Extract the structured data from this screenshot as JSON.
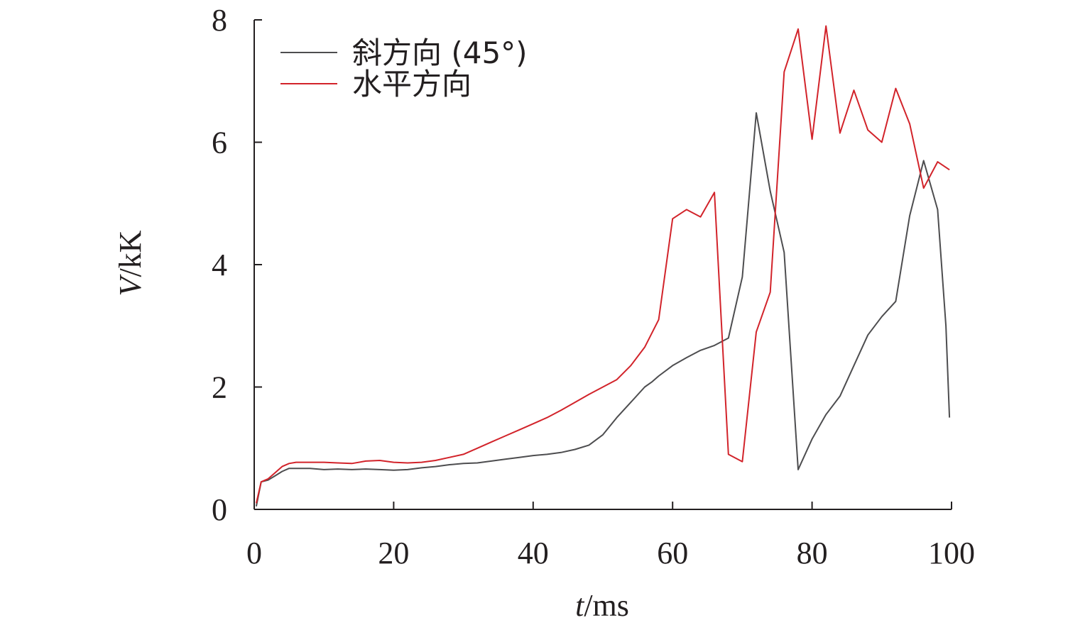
{
  "chart_data": {
    "type": "line",
    "xlabel": {
      "var": "t",
      "unit": "/ms"
    },
    "ylabel": {
      "var": "V",
      "unit": "/kK"
    },
    "xlim": [
      0,
      100
    ],
    "ylim": [
      0,
      8
    ],
    "xticks": [
      "0",
      "20",
      "40",
      "60",
      "80",
      "100"
    ],
    "yticks": [
      "0",
      "2",
      "4",
      "6",
      "8"
    ],
    "grid": false,
    "legend_position": "top-left",
    "series": [
      {
        "name": "斜方向 (45°)",
        "color": "#4d4d4f",
        "points": [
          [
            0.3,
            0.05
          ],
          [
            1,
            0.45
          ],
          [
            2,
            0.48
          ],
          [
            3,
            0.55
          ],
          [
            4,
            0.62
          ],
          [
            5,
            0.67
          ],
          [
            8,
            0.67
          ],
          [
            10,
            0.65
          ],
          [
            12,
            0.66
          ],
          [
            14,
            0.65
          ],
          [
            16,
            0.66
          ],
          [
            18,
            0.65
          ],
          [
            20,
            0.64
          ],
          [
            22,
            0.65
          ],
          [
            24,
            0.68
          ],
          [
            26,
            0.7
          ],
          [
            28,
            0.73
          ],
          [
            30,
            0.75
          ],
          [
            32,
            0.76
          ],
          [
            34,
            0.79
          ],
          [
            36,
            0.82
          ],
          [
            38,
            0.85
          ],
          [
            40,
            0.88
          ],
          [
            42,
            0.9
          ],
          [
            44,
            0.93
          ],
          [
            46,
            0.98
          ],
          [
            48,
            1.05
          ],
          [
            50,
            1.22
          ],
          [
            52,
            1.5
          ],
          [
            54,
            1.75
          ],
          [
            56,
            2.0
          ],
          [
            57,
            2.08
          ],
          [
            58,
            2.18
          ],
          [
            60,
            2.35
          ],
          [
            62,
            2.48
          ],
          [
            64,
            2.6
          ],
          [
            66,
            2.68
          ],
          [
            68,
            2.8
          ],
          [
            70,
            3.8
          ],
          [
            72,
            6.48
          ],
          [
            74,
            5.2
          ],
          [
            76,
            4.2
          ],
          [
            78,
            0.65
          ],
          [
            80,
            1.15
          ],
          [
            82,
            1.55
          ],
          [
            84,
            1.85
          ],
          [
            86,
            2.35
          ],
          [
            88,
            2.85
          ],
          [
            90,
            3.15
          ],
          [
            92,
            3.4
          ],
          [
            94,
            4.8
          ],
          [
            96,
            5.7
          ],
          [
            98,
            4.9
          ],
          [
            99.2,
            3.0
          ],
          [
            99.7,
            1.5
          ]
        ]
      },
      {
        "name": "水平方向",
        "color": "#d2232a",
        "points": [
          [
            0.3,
            0.1
          ],
          [
            1,
            0.45
          ],
          [
            2,
            0.5
          ],
          [
            3,
            0.6
          ],
          [
            4,
            0.7
          ],
          [
            5,
            0.75
          ],
          [
            6,
            0.77
          ],
          [
            8,
            0.77
          ],
          [
            10,
            0.77
          ],
          [
            12,
            0.76
          ],
          [
            14,
            0.75
          ],
          [
            16,
            0.79
          ],
          [
            18,
            0.8
          ],
          [
            20,
            0.77
          ],
          [
            22,
            0.76
          ],
          [
            24,
            0.77
          ],
          [
            26,
            0.8
          ],
          [
            28,
            0.85
          ],
          [
            30,
            0.9
          ],
          [
            32,
            1.0
          ],
          [
            34,
            1.1
          ],
          [
            36,
            1.2
          ],
          [
            38,
            1.3
          ],
          [
            40,
            1.4
          ],
          [
            42,
            1.5
          ],
          [
            44,
            1.62
          ],
          [
            46,
            1.75
          ],
          [
            48,
            1.88
          ],
          [
            50,
            2.0
          ],
          [
            52,
            2.12
          ],
          [
            54,
            2.35
          ],
          [
            56,
            2.65
          ],
          [
            58,
            3.1
          ],
          [
            60,
            4.75
          ],
          [
            62,
            4.9
          ],
          [
            64,
            4.78
          ],
          [
            66,
            5.18
          ],
          [
            68,
            0.9
          ],
          [
            70,
            0.78
          ],
          [
            72,
            2.9
          ],
          [
            74,
            3.55
          ],
          [
            76,
            7.15
          ],
          [
            78,
            7.85
          ],
          [
            80,
            6.05
          ],
          [
            82,
            7.9
          ],
          [
            84,
            6.15
          ],
          [
            86,
            6.85
          ],
          [
            88,
            6.2
          ],
          [
            90,
            6.0
          ],
          [
            92,
            6.88
          ],
          [
            94,
            6.3
          ],
          [
            96,
            5.25
          ],
          [
            98,
            5.68
          ],
          [
            99.7,
            5.55
          ]
        ]
      }
    ]
  }
}
